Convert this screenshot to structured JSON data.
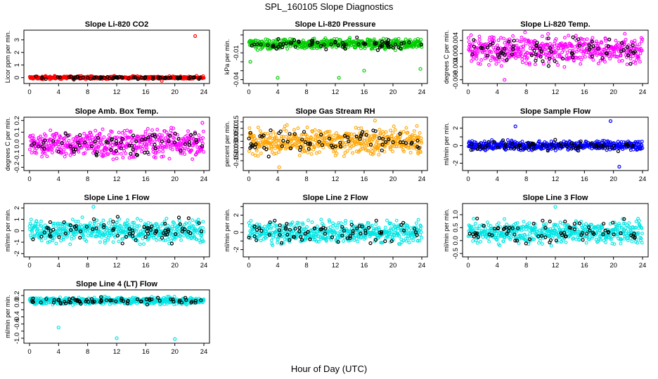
{
  "figure": {
    "title": "SPL_160105  Slope Diagnostics",
    "xlabel": "Hour of Day (UTC)"
  },
  "chart_data": [
    {
      "type": "scatter",
      "title": "Slope Li-820 CO2",
      "ylabel": "Licor ppm per min.",
      "xlim": [
        0,
        24
      ],
      "xticks": [
        0,
        4,
        8,
        12,
        16,
        20,
        24
      ],
      "ylim": [
        -0.3,
        3.6
      ],
      "yticks": [
        0,
        1,
        2,
        3
      ],
      "ytick_labels": [
        "0",
        "1",
        "2",
        "3"
      ],
      "color": "#ff0000",
      "spread": 0.08,
      "center": 0.0,
      "outliers": [
        {
          "x": 22.8,
          "y": 3.3
        },
        {
          "x": 18.2,
          "y": -0.25
        }
      ]
    },
    {
      "type": "scatter",
      "title": "Slope Li-820 Pressure",
      "ylabel": "kPa per min.",
      "xlim": [
        0,
        24
      ],
      "xticks": [
        0,
        4,
        8,
        12,
        16,
        20,
        24
      ],
      "ylim": [
        -0.042,
        0.013
      ],
      "yticks": [
        -0.04,
        -0.03,
        -0.02,
        -0.01,
        0.0,
        0.01
      ],
      "ytick_labels": [
        "-0.04",
        "",
        "",
        "-0.01",
        "",
        ""
      ],
      "color": "#00cc00",
      "spread": 0.004,
      "center": 0.0,
      "outliers": [
        {
          "x": 4.0,
          "y": -0.038
        },
        {
          "x": 12.5,
          "y": -0.038
        },
        {
          "x": 16.0,
          "y": -0.03
        },
        {
          "x": 23.8,
          "y": -0.028
        },
        {
          "x": 0.2,
          "y": -0.02
        }
      ]
    },
    {
      "type": "scatter",
      "title": "Slope Li-820 Temp.",
      "ylabel": "degrees C per min.",
      "xlim": [
        0,
        24
      ],
      "xticks": [
        0,
        4,
        8,
        12,
        16,
        20,
        24
      ],
      "ylim": [
        -0.0085,
        0.0065
      ],
      "yticks": [
        -0.008,
        -0.004,
        0.0,
        0.004
      ],
      "ytick_labels": [
        "-0.008",
        "-0.004",
        "0.000",
        "0.004"
      ],
      "color": "#ff00ff",
      "spread": 0.003,
      "center": 0.001,
      "outliers": [
        {
          "x": 5.0,
          "y": -0.008
        },
        {
          "x": 11.0,
          "y": 0.006
        }
      ]
    },
    {
      "type": "scatter",
      "title": "Slope Amb. Box Temp.",
      "ylabel": "degrees C per min.",
      "xlim": [
        0,
        24
      ],
      "xticks": [
        0,
        4,
        8,
        12,
        16,
        20,
        24
      ],
      "ylim": [
        -0.21,
        0.21
      ],
      "yticks": [
        -0.2,
        -0.1,
        0.0,
        0.1,
        0.2
      ],
      "ytick_labels": [
        "-0.2",
        "-0.1",
        "0.0",
        "0.1",
        "0.2"
      ],
      "color": "#ff00ff",
      "spread": 0.08,
      "center": 0.0,
      "outliers": [
        {
          "x": 23.8,
          "y": 0.18
        }
      ]
    },
    {
      "type": "scatter",
      "title": "Slope Gas Stream RH",
      "ylabel": "percent per min.",
      "xlim": [
        0,
        24
      ],
      "xticks": [
        0,
        4,
        8,
        12,
        16,
        20,
        24
      ],
      "ylim": [
        -0.21,
        0.17
      ],
      "yticks": [
        -0.15,
        -0.1,
        -0.05,
        0.0,
        0.05,
        0.1,
        0.15
      ],
      "ytick_labels": [
        "-0.15",
        "-0.10",
        "-0.05",
        "0.00",
        "0.05",
        "0.10",
        "0.15"
      ],
      "color": "#ffa500",
      "spread": 0.07,
      "center": 0.0,
      "outliers": [
        {
          "x": 4.2,
          "y": -0.2
        },
        {
          "x": 17.5,
          "y": 0.16
        }
      ]
    },
    {
      "type": "scatter",
      "title": "Slope Sample Flow",
      "ylabel": "ml/min per min.",
      "xlim": [
        0,
        24
      ],
      "xticks": [
        0,
        4,
        8,
        12,
        16,
        20,
        24
      ],
      "ylim": [
        -2.6,
        3.0
      ],
      "yticks": [
        -2,
        -1,
        0,
        1,
        2
      ],
      "ytick_labels": [
        "-2",
        "",
        "0",
        "",
        "2"
      ],
      "color": "#0000ff",
      "spread": 0.35,
      "center": 0.0,
      "outliers": [
        {
          "x": 19.6,
          "y": 2.8
        },
        {
          "x": 20.8,
          "y": -2.4
        },
        {
          "x": 6.5,
          "y": 2.2
        }
      ]
    },
    {
      "type": "scatter",
      "title": "Slope Line 1 Flow",
      "ylabel": "ml/min per min.",
      "xlim": [
        0,
        24
      ],
      "xticks": [
        0,
        4,
        8,
        12,
        16,
        20,
        24
      ],
      "ylim": [
        -2.1,
        2.2
      ],
      "yticks": [
        -2,
        -1,
        0,
        1,
        2
      ],
      "ytick_labels": [
        "-2",
        "-1",
        "0",
        "1",
        "2"
      ],
      "color": "#00e5e5",
      "spread": 0.7,
      "center": 0.0,
      "outliers": [
        {
          "x": 8.8,
          "y": 2.1
        }
      ]
    },
    {
      "type": "scatter",
      "title": "Slope Line 2 Flow",
      "ylabel": "ml/min per min.",
      "xlim": [
        0,
        24
      ],
      "xticks": [
        0,
        4,
        8,
        12,
        16,
        20,
        24
      ],
      "ylim": [
        -2.6,
        3.1
      ],
      "yticks": [
        -2,
        -1,
        0,
        1,
        2,
        3
      ],
      "ytick_labels": [
        "-2",
        "",
        "0",
        "",
        "2",
        ""
      ],
      "color": "#00e5e5",
      "spread": 0.8,
      "center": 0.0,
      "outliers": []
    },
    {
      "type": "scatter",
      "title": "Slope Line 3 Flow",
      "ylabel": "ml/min per min.",
      "xlim": [
        0,
        24
      ],
      "xticks": [
        0,
        4,
        8,
        12,
        16,
        20,
        24
      ],
      "ylim": [
        -0.55,
        1.35
      ],
      "yticks": [
        -0.5,
        0.0,
        0.5,
        1.0
      ],
      "ytick_labels": [
        "-0.5",
        "0.0",
        "0.5",
        "1.0"
      ],
      "color": "#00e5e5",
      "spread": 0.3,
      "center": 0.3,
      "outliers": [
        {
          "x": 12.0,
          "y": 1.3
        }
      ]
    },
    {
      "type": "scatter",
      "title": "Slope Line 4 (LT) Flow",
      "ylabel": "ml/min per min.",
      "xlim": [
        0,
        24
      ],
      "xticks": [
        0,
        4,
        8,
        12,
        16,
        20,
        24
      ],
      "ylim": [
        -1.08,
        0.3
      ],
      "yticks": [
        -1.0,
        -0.8,
        -0.6,
        -0.4,
        -0.2,
        0.0,
        0.2
      ],
      "ytick_labels": [
        "-1.0",
        "",
        "-0.6",
        "-0.4",
        "",
        "0.0",
        "0.2"
      ],
      "color": "#00e5e5",
      "spread": 0.07,
      "center": 0.05,
      "outliers": [
        {
          "x": 4.0,
          "y": -0.7
        },
        {
          "x": 12.0,
          "y": -1.0
        },
        {
          "x": 20.0,
          "y": -1.02
        }
      ]
    }
  ]
}
